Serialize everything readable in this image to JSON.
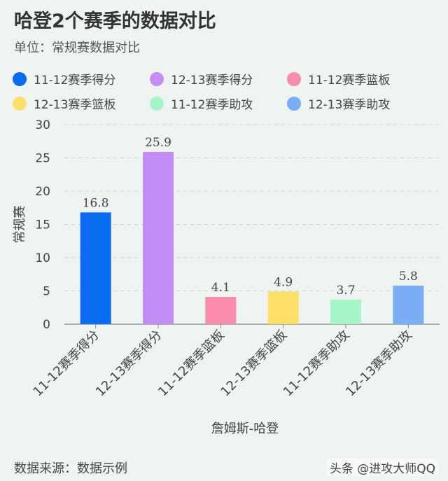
{
  "header": {
    "title": "哈登2个赛季的数据对比",
    "subtitle": "单位：常规赛数据对比"
  },
  "footer": {
    "source": "数据来源：数据示例",
    "watermark": "头条 @进攻大师QQ"
  },
  "chart_data": {
    "type": "bar",
    "categories": [
      "11-12赛季得分",
      "12-13赛季得分",
      "11-12赛季篮板",
      "12-13赛季篮板",
      "11-12赛季助攻",
      "12-13赛季助攻"
    ],
    "values": [
      16.8,
      25.9,
      4.1,
      4.9,
      3.7,
      5.8
    ],
    "colors": [
      "#0a6cf0",
      "#c48cf5",
      "#f78daa",
      "#fde06a",
      "#a6f5c8",
      "#7aaff5"
    ],
    "xlabel": "詹姆斯-哈登",
    "ylabel": "常规赛",
    "ylim": [
      0,
      30
    ],
    "yticks": [
      0,
      5,
      10,
      15,
      20,
      25,
      30
    ],
    "grid": true,
    "legend_position": "top"
  }
}
